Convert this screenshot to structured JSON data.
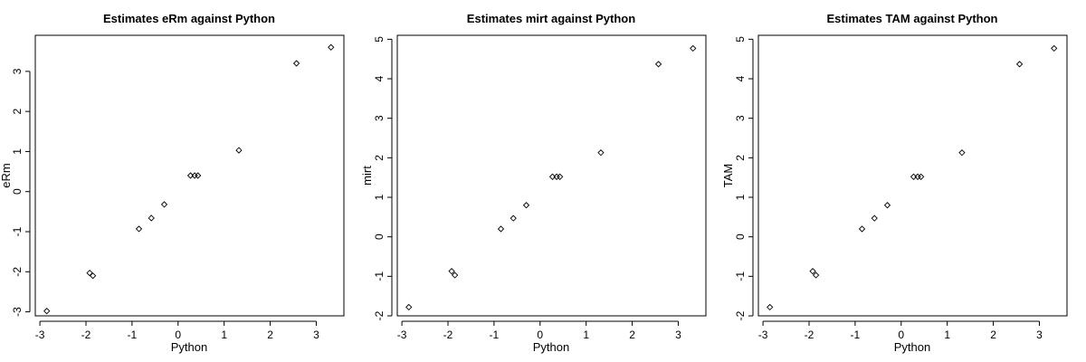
{
  "chart_data": [
    {
      "type": "scatter",
      "title": "Estimates eRm against Python",
      "xlabel": "Python",
      "ylabel": "eRm",
      "xlim": [
        -3.1,
        3.6
      ],
      "ylim": [
        -3.1,
        3.9
      ],
      "xticks": [
        -3,
        -2,
        -1,
        0,
        1,
        2,
        3
      ],
      "yticks": [
        -3,
        -2,
        -1,
        0,
        1,
        2,
        3
      ],
      "x": [
        -2.85,
        -1.92,
        -1.85,
        -0.85,
        -0.58,
        -0.3,
        0.27,
        0.36,
        0.43,
        1.32,
        2.57,
        3.32
      ],
      "y": [
        -2.98,
        -2.03,
        -2.1,
        -0.93,
        -0.66,
        -0.32,
        0.4,
        0.4,
        0.4,
        1.03,
        3.2,
        3.6
      ],
      "marker": "open-diamond",
      "color": "#000000",
      "grid": false
    },
    {
      "type": "scatter",
      "title": "Estimates mirt against Python",
      "xlabel": "Python",
      "ylabel": "mirt",
      "xlim": [
        -3.1,
        3.6
      ],
      "ylim": [
        -2.0,
        5.1
      ],
      "xticks": [
        -3,
        -2,
        -1,
        0,
        1,
        2,
        3
      ],
      "yticks": [
        -2,
        -1,
        0,
        1,
        2,
        3,
        4,
        5
      ],
      "x": [
        -2.85,
        -1.92,
        -1.85,
        -0.85,
        -0.58,
        -0.3,
        0.27,
        0.36,
        0.43,
        1.32,
        2.57,
        3.32
      ],
      "y": [
        -1.78,
        -0.87,
        -0.97,
        0.2,
        0.47,
        0.8,
        1.52,
        1.52,
        1.52,
        2.13,
        4.37,
        4.77
      ],
      "marker": "open-diamond",
      "color": "#000000",
      "grid": false
    },
    {
      "type": "scatter",
      "title": "Estimates TAM against Python",
      "xlabel": "Python",
      "ylabel": "TAM",
      "xlim": [
        -3.1,
        3.6
      ],
      "ylim": [
        -2.0,
        5.1
      ],
      "xticks": [
        -3,
        -2,
        -1,
        0,
        1,
        2,
        3
      ],
      "yticks": [
        -2,
        -1,
        0,
        1,
        2,
        3,
        4,
        5
      ],
      "x": [
        -2.85,
        -1.92,
        -1.85,
        -0.85,
        -0.58,
        -0.3,
        0.27,
        0.36,
        0.43,
        1.32,
        2.57,
        3.32
      ],
      "y": [
        -1.78,
        -0.87,
        -0.97,
        0.2,
        0.47,
        0.8,
        1.52,
        1.52,
        1.52,
        2.13,
        4.37,
        4.77
      ],
      "marker": "open-diamond",
      "color": "#000000",
      "grid": false
    }
  ]
}
